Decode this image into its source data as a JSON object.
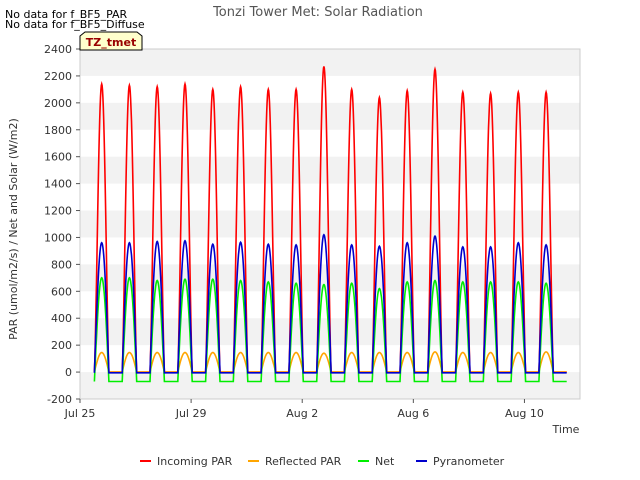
{
  "notes": [
    "No data for f_BF5_PAR",
    "No data for f_BF5_Diffuse"
  ],
  "tag_label": "TZ_tmet",
  "chart_data": {
    "type": "line",
    "title": "Tonzi Tower Met: Solar Radiation",
    "xlabel": "Time",
    "ylabel": "PAR (umol/m2/s) / Net and Solar (W/m2)",
    "ylim": [
      -200,
      2400
    ],
    "yticks": [
      -200,
      0,
      200,
      400,
      600,
      800,
      1000,
      1200,
      1400,
      1600,
      1800,
      2000,
      2200,
      2400
    ],
    "xlim_days": [
      0,
      18
    ],
    "xticks": [
      {
        "day": 0,
        "label": "Jul 25"
      },
      {
        "day": 4,
        "label": "Jul 29"
      },
      {
        "day": 8,
        "label": "Aug 2"
      },
      {
        "day": 12,
        "label": "Aug 6"
      },
      {
        "day": 16,
        "label": "Aug 10"
      }
    ],
    "grid": "horizontal bands",
    "legend_position": "bottom",
    "series": [
      {
        "name": "Incoming PAR",
        "color": "#ff0000",
        "peaks": [
          2140,
          2130,
          2120,
          2140,
          2100,
          2120,
          2100,
          2100,
          2270,
          2100,
          2040,
          2090,
          2250,
          2080,
          2070,
          2080,
          2080
        ],
        "night": 0
      },
      {
        "name": "Reflected PAR",
        "color": "#ffa500",
        "peaks": [
          145,
          145,
          145,
          145,
          145,
          145,
          145,
          145,
          140,
          145,
          145,
          145,
          150,
          145,
          145,
          145,
          150
        ],
        "night": 0
      },
      {
        "name": "Net",
        "color": "#00ee00",
        "peaks": [
          700,
          700,
          680,
          690,
          690,
          680,
          670,
          660,
          650,
          660,
          620,
          670,
          680,
          670,
          670,
          670,
          660
        ],
        "night": -70
      },
      {
        "name": "Pyranometer",
        "color": "#0000cc",
        "peaks": [
          960,
          960,
          970,
          975,
          950,
          965,
          950,
          945,
          1020,
          945,
          935,
          960,
          1010,
          930,
          930,
          960,
          945
        ],
        "night": -5
      }
    ]
  }
}
